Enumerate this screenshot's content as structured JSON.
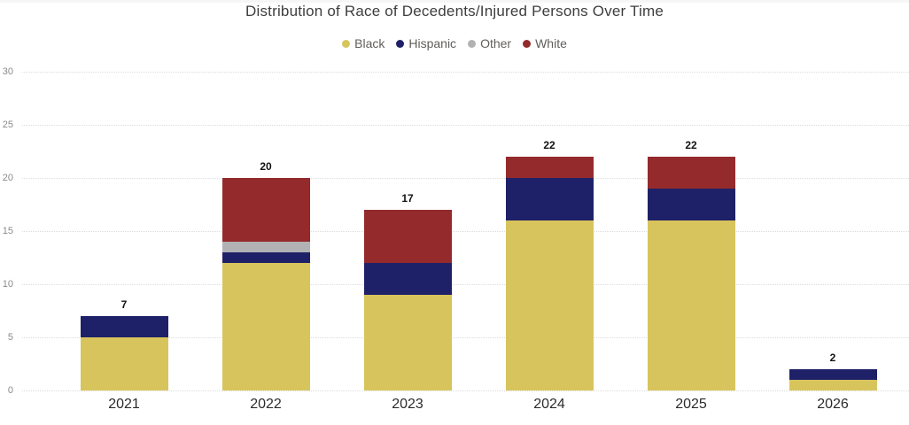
{
  "chart_data": {
    "type": "bar",
    "stacked": true,
    "title": "Distribution of Race of Decedents/Injured Persons Over Time",
    "categories": [
      "2021",
      "2022",
      "2023",
      "2024",
      "2025",
      "2026"
    ],
    "series": [
      {
        "name": "Black",
        "color": "#D8C45C",
        "values": [
          5,
          12,
          9,
          16,
          16,
          1
        ]
      },
      {
        "name": "Hispanic",
        "color": "#1F2168",
        "values": [
          2,
          1,
          3,
          4,
          3,
          1
        ]
      },
      {
        "name": "Other",
        "color": "#B2B2B4",
        "values": [
          0,
          1,
          0,
          0,
          0,
          0
        ]
      },
      {
        "name": "White",
        "color": "#942A2C",
        "values": [
          0,
          6,
          5,
          2,
          3,
          0
        ]
      }
    ],
    "totals": [
      7,
      20,
      17,
      22,
      22,
      2
    ],
    "y_ticks": [
      0,
      5,
      10,
      15,
      20,
      25,
      30
    ],
    "ylim": [
      0,
      30
    ],
    "xlabel": "",
    "ylabel": "",
    "legend_position": "top",
    "grid": "horizontal-dotted"
  }
}
